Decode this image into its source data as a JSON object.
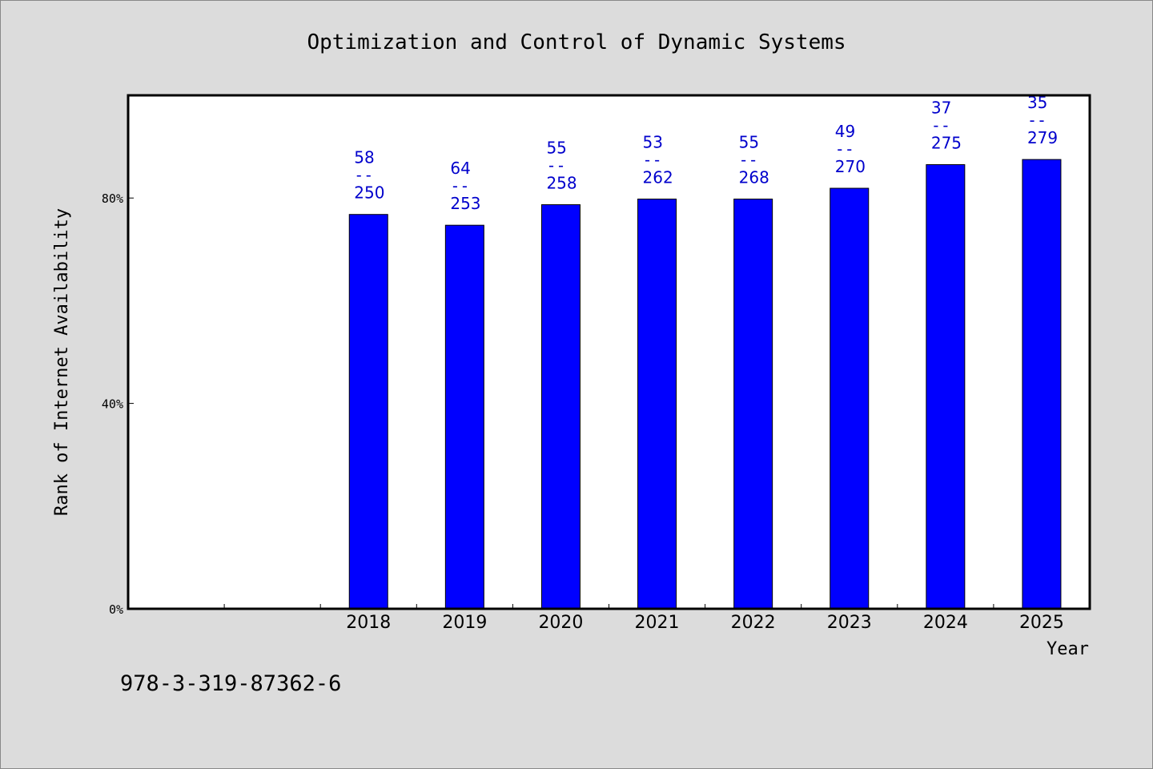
{
  "chart_data": {
    "type": "bar",
    "title": "Optimization and Control of Dynamic Systems",
    "xlabel": "Year",
    "ylabel": "Rank of Internet Availability",
    "yticks": [
      "0%",
      "40%",
      "80%"
    ],
    "ylim": [
      0,
      100
    ],
    "categories": [
      "2018",
      "2019",
      "2020",
      "2021",
      "2022",
      "2023",
      "2024",
      "2025"
    ],
    "values": [
      76.8,
      74.7,
      78.7,
      79.8,
      79.8,
      81.9,
      86.5,
      87.5
    ],
    "annotations": [
      {
        "top": "58",
        "mid": "--",
        "bottom": "250"
      },
      {
        "top": "64",
        "mid": "--",
        "bottom": "253"
      },
      {
        "top": "55",
        "mid": "--",
        "bottom": "258"
      },
      {
        "top": "53",
        "mid": "--",
        "bottom": "262"
      },
      {
        "top": "55",
        "mid": "--",
        "bottom": "268"
      },
      {
        "top": "49",
        "mid": "--",
        "bottom": "270"
      },
      {
        "top": "37",
        "mid": "--",
        "bottom": "275"
      },
      {
        "top": "35",
        "mid": "--",
        "bottom": "279"
      }
    ],
    "bar_color": "#0000ff",
    "label_color": "#0000cc",
    "grid": false,
    "legend": "none"
  },
  "footer_code": "978-3-319-87362-6"
}
